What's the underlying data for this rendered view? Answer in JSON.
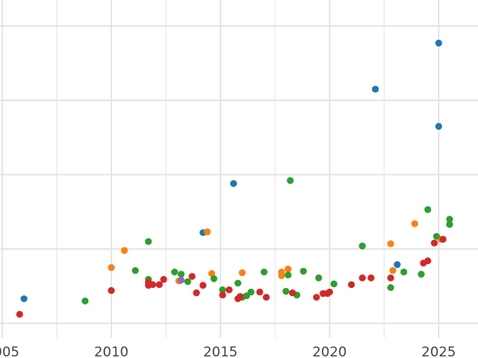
{
  "chart_data": {
    "type": "scatter",
    "title": "",
    "xlabel": "",
    "ylabel": "",
    "xlim": [
      2004.9,
      2026.8
    ],
    "ylim": [
      -0.2,
      4.35
    ],
    "x_ticks": [
      2005,
      2010,
      2015,
      2020,
      2025
    ],
    "x_tick_labels": [
      "2005",
      "2010",
      "2015",
      "2020",
      "2025"
    ],
    "y_gridlines": [
      0,
      1,
      2,
      3,
      4
    ],
    "grid": true,
    "legend": "none",
    "series": [
      {
        "color": "#1f77b4",
        "points": [
          [
            2006.0,
            0.33
          ],
          [
            2014.2,
            1.22
          ],
          [
            2015.6,
            1.88
          ],
          [
            2022.1,
            3.15
          ],
          [
            2023.1,
            0.79
          ],
          [
            2025.0,
            2.65
          ],
          [
            2025.0,
            3.77
          ]
        ]
      },
      {
        "color": "#ff7f0e",
        "points": [
          [
            2010.0,
            0.75
          ],
          [
            2010.6,
            0.98
          ],
          [
            2013.1,
            0.57
          ],
          [
            2014.4,
            1.23
          ],
          [
            2014.6,
            0.67
          ],
          [
            2016.0,
            0.68
          ],
          [
            2017.8,
            0.64
          ],
          [
            2017.8,
            0.69
          ],
          [
            2018.1,
            0.73
          ],
          [
            2022.8,
            1.07
          ],
          [
            2022.9,
            0.71
          ],
          [
            2023.9,
            1.34
          ],
          [
            2025.1,
            1.13
          ]
        ]
      },
      {
        "color": "#2ca02c",
        "points": [
          [
            2008.8,
            0.3
          ],
          [
            2011.1,
            0.71
          ],
          [
            2011.7,
            0.59
          ],
          [
            2011.7,
            1.1
          ],
          [
            2012.9,
            0.69
          ],
          [
            2013.2,
            0.66
          ],
          [
            2013.5,
            0.56
          ],
          [
            2014.7,
            0.6
          ],
          [
            2015.1,
            0.45
          ],
          [
            2015.8,
            0.54
          ],
          [
            2016.0,
            0.35
          ],
          [
            2016.2,
            0.37
          ],
          [
            2016.4,
            0.42
          ],
          [
            2017.0,
            0.69
          ],
          [
            2018.0,
            0.43
          ],
          [
            2018.1,
            0.65
          ],
          [
            2018.2,
            1.92
          ],
          [
            2018.5,
            0.38
          ],
          [
            2018.8,
            0.7
          ],
          [
            2019.5,
            0.61
          ],
          [
            2020.2,
            0.53
          ],
          [
            2021.5,
            1.04
          ],
          [
            2022.8,
            0.48
          ],
          [
            2023.4,
            0.69
          ],
          [
            2024.2,
            0.66
          ],
          [
            2024.5,
            1.53
          ],
          [
            2024.9,
            1.17
          ],
          [
            2025.5,
            1.4
          ],
          [
            2025.5,
            1.33
          ]
        ]
      },
      {
        "color": "#d62728",
        "points": [
          [
            2005.8,
            0.12
          ],
          [
            2010.0,
            0.44
          ],
          [
            2011.7,
            0.51
          ],
          [
            2011.7,
            0.55
          ],
          [
            2011.9,
            0.52
          ],
          [
            2012.2,
            0.52
          ],
          [
            2012.4,
            0.59
          ],
          [
            2013.7,
            0.63
          ],
          [
            2013.9,
            0.41
          ],
          [
            2014.2,
            0.51
          ],
          [
            2015.1,
            0.38
          ],
          [
            2015.4,
            0.45
          ],
          [
            2015.8,
            0.33
          ],
          [
            2015.9,
            0.36
          ],
          [
            2016.8,
            0.42
          ],
          [
            2017.1,
            0.35
          ],
          [
            2018.3,
            0.41
          ],
          [
            2019.4,
            0.35
          ],
          [
            2019.7,
            0.4
          ],
          [
            2019.9,
            0.4
          ],
          [
            2020.0,
            0.42
          ],
          [
            2021.0,
            0.52
          ],
          [
            2021.5,
            0.61
          ],
          [
            2021.9,
            0.61
          ],
          [
            2022.8,
            0.61
          ],
          [
            2024.3,
            0.81
          ],
          [
            2024.5,
            0.84
          ],
          [
            2024.8,
            1.08
          ],
          [
            2025.2,
            1.13
          ]
        ]
      },
      {
        "color": "#9467bd",
        "points": [
          [
            2013.2,
            0.58
          ]
        ]
      }
    ]
  }
}
